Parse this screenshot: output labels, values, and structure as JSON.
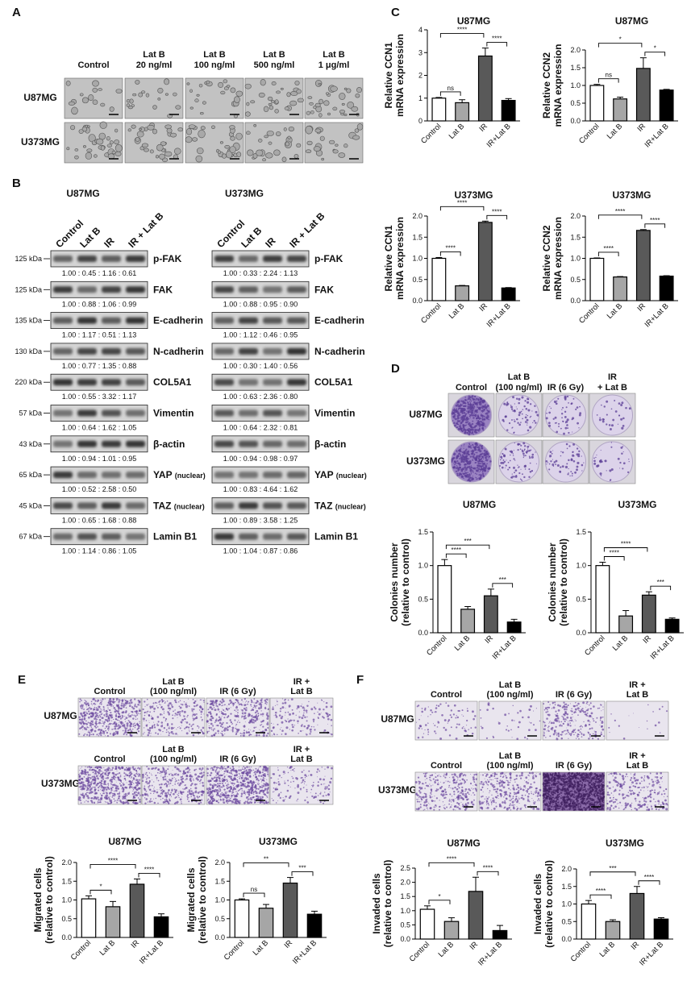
{
  "panel_labels": [
    "A",
    "B",
    "C",
    "D",
    "E",
    "F"
  ],
  "panel_a": {
    "columns": [
      [
        "Control"
      ],
      [
        "Lat B",
        "20 ng/ml"
      ],
      [
        "Lat B",
        "100 ng/ml"
      ],
      [
        "Lat B",
        "500 ng/ml"
      ],
      [
        "Lat B",
        "1 μg/ml"
      ]
    ],
    "rows": [
      "U87MG",
      "U373MG"
    ]
  },
  "panel_b": {
    "lanes": [
      "Control",
      "Lat B",
      "IR",
      "IR + Lat B"
    ],
    "kda": [
      "125 kDa",
      "125 kDa",
      "135 kDa",
      "130 kDa",
      "220 kDa",
      "57 kDa",
      "43 kDa",
      "65 kDa",
      "45 kDa",
      "67 kDa"
    ],
    "proteins": [
      {
        "name": "p-FAK"
      },
      {
        "name": "FAK"
      },
      {
        "name": "E-cadherin"
      },
      {
        "name": "N-cadherin"
      },
      {
        "name": "COL5A1"
      },
      {
        "name": "Vimentin"
      },
      {
        "name": "β-actin"
      },
      {
        "name": "YAP",
        "note": "(nuclear)"
      },
      {
        "name": "TAZ",
        "note": "(nuclear)"
      },
      {
        "name": "Lamin B1"
      }
    ],
    "blots": [
      {
        "title": "U87MG",
        "ratios": [
          "1.00 : 0.45 : 1.16 : 0.61",
          "1.00 : 0.88 : 1.06 : 0.99",
          "1.00 : 1.17 : 0.51 : 1.13",
          "1.00 : 0.77 : 1.35 : 0.88",
          "1.00 : 0.55 : 3.32 : 1.17",
          "1.00 : 0.64 : 1.62 : 1.05",
          "1.00 : 0.94 : 1.01 : 0.95",
          "1.00 : 0.52 : 2.58 : 0.50",
          "1.00 : 0.65 : 1.68 : 0.88",
          "1.00 : 1.14 : 0.86 : 1.05"
        ]
      },
      {
        "title": "U373MG",
        "ratios": [
          "1.00 : 0.33 : 2.24 : 1.13",
          "1.00 : 0.88 : 0.95 : 0.90",
          "1.00 : 1.12 : 0.46 : 0.95",
          "1.00 : 0.30 : 1.40 : 0.56",
          "1.00 : 0.63 : 2.36 : 0.80",
          "1.00 : 0.64 : 2.32 : 0.81",
          "1.00 : 0.94 : 0.98 : 0.97",
          "1.00 : 0.83 : 4.64 : 1.62",
          "1.00 : 0.89 : 3.58 : 1.25",
          "1.00 : 1.04 : 0.87 : 0.86"
        ]
      }
    ]
  },
  "panel_d": {
    "columns": [
      [
        "Control"
      ],
      [
        "Lat B",
        "(100 ng/ml)"
      ],
      [
        "IR (6 Gy)"
      ],
      [
        "IR",
        "+ Lat B"
      ]
    ],
    "rows": [
      "U87MG",
      "U373MG"
    ]
  },
  "panel_e": {
    "columns": [
      [
        "Control"
      ],
      [
        "Lat B",
        "(100 ng/ml)"
      ],
      [
        "IR (6 Gy)"
      ],
      [
        "IR +",
        "Lat B"
      ]
    ],
    "rows": [
      "U87MG",
      "U373MG"
    ]
  },
  "panel_f": {
    "columns": [
      [
        "Control"
      ],
      [
        "Lat B",
        "(100 ng/ml)"
      ],
      [
        "IR (6 Gy)"
      ],
      [
        "IR +",
        "Lat B"
      ]
    ],
    "rows": [
      "U87MG",
      "U373MG"
    ]
  },
  "chart_data": [
    {
      "type": "bar",
      "title": "U87MG",
      "y_label": [
        "Relative CCN1",
        "mRNA expression"
      ],
      "categories": [
        "Control",
        "Lat B",
        "IR",
        "IR+Lat B"
      ],
      "values": [
        1.0,
        0.8,
        2.85,
        0.9
      ],
      "errors": [
        0.03,
        0.13,
        0.35,
        0.08
      ],
      "colors": [
        "#ffffff",
        "#a6a6a6",
        "#595959",
        "#000000"
      ],
      "ylim": [
        0,
        4
      ],
      "yticks": [
        0,
        1,
        2,
        3,
        4
      ],
      "significance": [
        {
          "from": 0,
          "to": 1,
          "label": "ns"
        },
        {
          "from": 0,
          "to": 2,
          "label": "****"
        },
        {
          "from": 2,
          "to": 3,
          "label": "****"
        }
      ]
    },
    {
      "type": "bar",
      "title": "U87MG",
      "y_label": [
        "Relative CCN2",
        "mRNA expression"
      ],
      "categories": [
        "Control",
        "Lat B",
        "IR",
        "IR+Lat B"
      ],
      "values": [
        1.0,
        0.62,
        1.48,
        0.87
      ],
      "errors": [
        0.03,
        0.05,
        0.3,
        0.02
      ],
      "colors": [
        "#ffffff",
        "#a6a6a6",
        "#595959",
        "#000000"
      ],
      "ylim": [
        0,
        2
      ],
      "yticks": [
        {
          "value": 0,
          "label": "0.0"
        },
        0.5,
        {
          "value": 1,
          "label": "1.0"
        },
        1.5,
        {
          "value": 2,
          "label": "2.0"
        }
      ],
      "significance": [
        {
          "from": 0,
          "to": 1,
          "label": "ns"
        },
        {
          "from": 0,
          "to": 2,
          "label": "*"
        },
        {
          "from": 2,
          "to": 3,
          "label": "*"
        }
      ]
    },
    {
      "type": "bar",
      "title": "U373MG",
      "y_label": [
        "Relative CCN1",
        "mRNA expression"
      ],
      "categories": [
        "Control",
        "Lat B",
        "IR",
        "IR+Lat B"
      ],
      "values": [
        1.0,
        0.35,
        1.85,
        0.3
      ],
      "errors": [
        0.02,
        0.01,
        0.03,
        0.01
      ],
      "colors": [
        "#ffffff",
        "#a6a6a6",
        "#595959",
        "#000000"
      ],
      "ylim": [
        0,
        2
      ],
      "yticks": [
        {
          "value": 0,
          "label": "0.0"
        },
        0.5,
        {
          "value": 1,
          "label": "1.0"
        },
        1.5,
        {
          "value": 2,
          "label": "2.0"
        }
      ],
      "significance": [
        {
          "from": 0,
          "to": 1,
          "label": "****"
        },
        {
          "from": 0,
          "to": 2,
          "label": "****"
        },
        {
          "from": 2,
          "to": 3,
          "label": "****"
        }
      ]
    },
    {
      "type": "bar",
      "title": "U373MG",
      "y_label": [
        "Relative CCN2",
        "mRNA expression"
      ],
      "categories": [
        "Control",
        "Lat B",
        "IR",
        "IR+Lat B"
      ],
      "values": [
        1.0,
        0.56,
        1.66,
        0.58
      ],
      "errors": [
        0.01,
        0.01,
        0.02,
        0.01
      ],
      "colors": [
        "#ffffff",
        "#a6a6a6",
        "#595959",
        "#000000"
      ],
      "ylim": [
        0,
        2
      ],
      "yticks": [
        {
          "value": 0,
          "label": "0.0"
        },
        0.5,
        {
          "value": 1,
          "label": "1.0"
        },
        1.5,
        {
          "value": 2,
          "label": "2.0"
        }
      ],
      "significance": [
        {
          "from": 0,
          "to": 1,
          "label": "****"
        },
        {
          "from": 0,
          "to": 2,
          "label": "****"
        },
        {
          "from": 2,
          "to": 3,
          "label": "****"
        }
      ]
    },
    {
      "type": "bar",
      "title": "U87MG",
      "y_label": [
        "Colonies number",
        "(relative to control)"
      ],
      "categories": [
        "Control",
        "Lat B",
        "IR",
        "IR+Lat B"
      ],
      "values": [
        1.0,
        0.35,
        0.55,
        0.16
      ],
      "errors": [
        0.09,
        0.04,
        0.1,
        0.04
      ],
      "colors": [
        "#ffffff",
        "#a6a6a6",
        "#595959",
        "#000000"
      ],
      "ylim": [
        0,
        1.5
      ],
      "yticks": [
        {
          "value": 0,
          "label": "0.0"
        },
        0.5,
        {
          "value": 1,
          "label": "1.0"
        },
        1.5
      ],
      "significance": [
        {
          "from": 0,
          "to": 1,
          "label": "****"
        },
        {
          "from": 0,
          "to": 2,
          "label": "***"
        },
        {
          "from": 2,
          "to": 3,
          "label": "***"
        }
      ]
    },
    {
      "type": "bar",
      "title": "U373MG",
      "y_label": [
        "Colonies number",
        "(relative to control)"
      ],
      "categories": [
        "Control",
        "Lat B",
        "IR",
        "IR+Lat B"
      ],
      "values": [
        1.0,
        0.25,
        0.56,
        0.2
      ],
      "errors": [
        0.05,
        0.08,
        0.05,
        0.02
      ],
      "colors": [
        "#ffffff",
        "#a6a6a6",
        "#595959",
        "#000000"
      ],
      "ylim": [
        0,
        1.5
      ],
      "yticks": [
        {
          "value": 0,
          "label": "0.0"
        },
        0.5,
        {
          "value": 1,
          "label": "1.0"
        },
        1.5
      ],
      "significance": [
        {
          "from": 0,
          "to": 1,
          "label": "****"
        },
        {
          "from": 0,
          "to": 2,
          "label": "****"
        },
        {
          "from": 2,
          "to": 3,
          "label": "***"
        }
      ]
    },
    {
      "type": "bar",
      "title": "U87MG",
      "y_label": [
        "Migrated cells",
        "(relative to control)"
      ],
      "categories": [
        "Control",
        "Lat B",
        "IR",
        "IR+Lat B"
      ],
      "values": [
        1.03,
        0.82,
        1.42,
        0.55
      ],
      "errors": [
        0.08,
        0.14,
        0.14,
        0.08
      ],
      "colors": [
        "#ffffff",
        "#a6a6a6",
        "#595959",
        "#000000"
      ],
      "ylim": [
        0,
        2
      ],
      "yticks": [
        {
          "value": 0,
          "label": "0.0"
        },
        0.5,
        {
          "value": 1,
          "label": "1.0"
        },
        1.5,
        {
          "value": 2,
          "label": "2.0"
        }
      ],
      "significance": [
        {
          "from": 0,
          "to": 1,
          "label": "*"
        },
        {
          "from": 0,
          "to": 2,
          "label": "****"
        },
        {
          "from": 2,
          "to": 3,
          "label": "****"
        }
      ]
    },
    {
      "type": "bar",
      "title": "U373MG",
      "y_label": [
        "Migrated cells",
        "(relative to control)"
      ],
      "categories": [
        "Control",
        "Lat B",
        "IR",
        "IR+Lat B"
      ],
      "values": [
        1.0,
        0.78,
        1.45,
        0.62
      ],
      "errors": [
        0.03,
        0.1,
        0.15,
        0.08
      ],
      "colors": [
        "#ffffff",
        "#a6a6a6",
        "#595959",
        "#000000"
      ],
      "ylim": [
        0,
        2
      ],
      "yticks": [
        {
          "value": 0,
          "label": "0.0"
        },
        0.5,
        {
          "value": 1,
          "label": "1.0"
        },
        1.5,
        {
          "value": 2,
          "label": "2.0"
        }
      ],
      "significance": [
        {
          "from": 0,
          "to": 1,
          "label": "ns"
        },
        {
          "from": 0,
          "to": 2,
          "label": "**"
        },
        {
          "from": 2,
          "to": 3,
          "label": "***"
        }
      ]
    },
    {
      "type": "bar",
      "title": "U87MG",
      "y_label": [
        "Invaded cells",
        "(relative to control)"
      ],
      "categories": [
        "Control",
        "Lat B",
        "IR",
        "IR+Lat B"
      ],
      "values": [
        1.05,
        0.62,
        1.68,
        0.3
      ],
      "errors": [
        0.12,
        0.13,
        0.5,
        0.18
      ],
      "colors": [
        "#ffffff",
        "#a6a6a6",
        "#595959",
        "#000000"
      ],
      "ylim": [
        0,
        2.5
      ],
      "yticks": [
        {
          "value": 0,
          "label": "0.0"
        },
        0.5,
        {
          "value": 1,
          "label": "1.0"
        },
        1.5,
        {
          "value": 2,
          "label": "2.0"
        },
        2.5
      ],
      "significance": [
        {
          "from": 0,
          "to": 1,
          "label": "*"
        },
        {
          "from": 0,
          "to": 2,
          "label": "****"
        },
        {
          "from": 2,
          "to": 3,
          "label": "****"
        }
      ]
    },
    {
      "type": "bar",
      "title": "U373MG",
      "y_label": [
        "Invaded cells",
        "(relative to control)"
      ],
      "categories": [
        "Control",
        "Lat B",
        "IR",
        "IR+Lat B"
      ],
      "values": [
        1.0,
        0.5,
        1.3,
        0.57
      ],
      "errors": [
        0.1,
        0.05,
        0.2,
        0.04
      ],
      "colors": [
        "#ffffff",
        "#a6a6a6",
        "#595959",
        "#000000"
      ],
      "ylim": [
        0,
        2
      ],
      "yticks": [
        {
          "value": 0,
          "label": "0.0"
        },
        0.5,
        {
          "value": 1,
          "label": "1.0"
        },
        1.5,
        {
          "value": 2,
          "label": "2.0"
        }
      ],
      "significance": [
        {
          "from": 0,
          "to": 1,
          "label": "****"
        },
        {
          "from": 0,
          "to": 2,
          "label": "***"
        },
        {
          "from": 2,
          "to": 3,
          "label": "****"
        }
      ]
    }
  ]
}
